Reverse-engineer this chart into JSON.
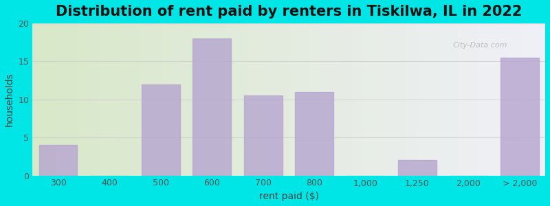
{
  "title": "Distribution of rent paid by renters in Tiskilwa, IL in 2022",
  "xlabel": "rent paid ($)",
  "ylabel": "households",
  "bar_labels": [
    "300",
    "400",
    "500",
    "600",
    "700",
    "800",
    "1,000",
    "1,250",
    "2,000",
    "> 2,000"
  ],
  "bar_heights": [
    4,
    0,
    12,
    18,
    10.5,
    11,
    0,
    2,
    0,
    15.5
  ],
  "bar_color": "#b8a9d0",
  "ylim": [
    0,
    20
  ],
  "yticks": [
    0,
    5,
    10,
    15,
    20
  ],
  "background_outer": "#00e5e5",
  "background_inner_left": "#d8e8c8",
  "background_inner_right": "#f0f0f8",
  "title_fontsize": 15,
  "axis_label_fontsize": 10,
  "tick_fontsize": 9,
  "watermark": "City-Data.com",
  "grid_color": "#cccccc",
  "grid_alpha": 0.7
}
